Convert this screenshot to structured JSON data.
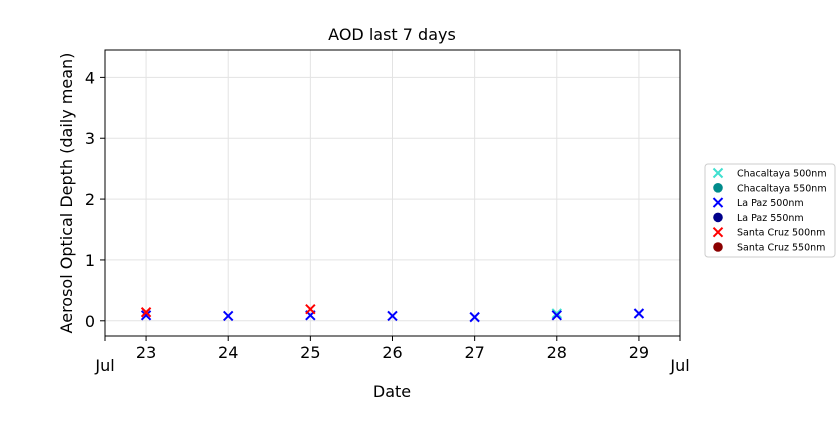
{
  "chart_data": {
    "type": "scatter",
    "title": "AOD last 7 days",
    "xlabel": "Date",
    "ylabel": "Aerosol Optical Depth (daily mean)",
    "xlim": [
      "2023-07-22.5",
      "2023-07-29.5"
    ],
    "ylim": [
      -0.25,
      4.45
    ],
    "grid": true,
    "legend_position": "right, outside plot",
    "x_ticks": [
      {
        "x": 23,
        "label": "23"
      },
      {
        "x": 24,
        "label": "24"
      },
      {
        "x": 25,
        "label": "25"
      },
      {
        "x": 26,
        "label": "26"
      },
      {
        "x": 27,
        "label": "27"
      },
      {
        "x": 28,
        "label": "28"
      },
      {
        "x": 29,
        "label": "29"
      }
    ],
    "x_edge_ticks": [
      {
        "x": 22.5,
        "label": "Jul"
      },
      {
        "x": 29.5,
        "label": "Jul"
      }
    ],
    "y_ticks": [
      0,
      1,
      2,
      3,
      4
    ],
    "series": [
      {
        "name": "Chacaltaya 500nm",
        "marker": "x",
        "color": "#40e0d0",
        "points": [
          {
            "x": 28,
            "y": 0.12
          }
        ]
      },
      {
        "name": "Chacaltaya 550nm",
        "marker": "o",
        "color": "#008b8b",
        "points": []
      },
      {
        "name": "La Paz 500nm",
        "marker": "x",
        "color": "#0000ff",
        "points": [
          {
            "x": 23,
            "y": 0.09
          },
          {
            "x": 24,
            "y": 0.08
          },
          {
            "x": 25,
            "y": 0.09
          },
          {
            "x": 26,
            "y": 0.08
          },
          {
            "x": 27,
            "y": 0.06
          },
          {
            "x": 28,
            "y": 0.09
          },
          {
            "x": 29,
            "y": 0.12
          }
        ]
      },
      {
        "name": "La Paz 550nm",
        "marker": "o",
        "color": "#00008b",
        "points": []
      },
      {
        "name": "Santa Cruz 500nm",
        "marker": "x",
        "color": "#ff0000",
        "points": [
          {
            "x": 23,
            "y": 0.14
          },
          {
            "x": 25,
            "y": 0.19
          }
        ]
      },
      {
        "name": "Santa Cruz 550nm",
        "marker": "o",
        "color": "#8b0000",
        "points": []
      }
    ]
  }
}
